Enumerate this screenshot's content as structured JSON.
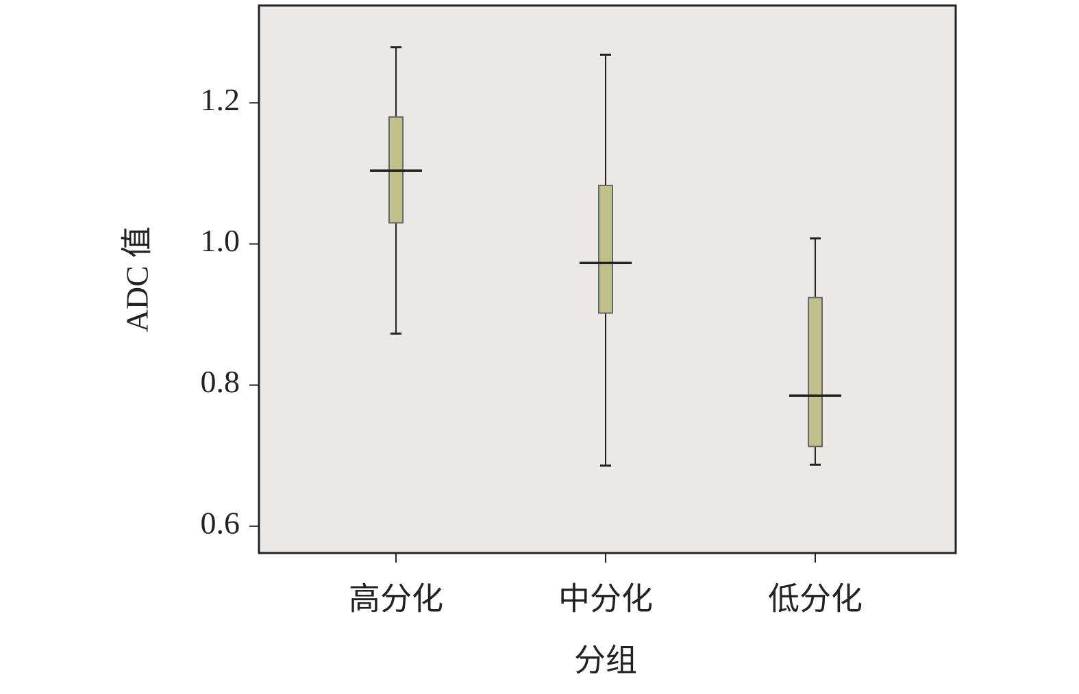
{
  "chart_data": {
    "type": "box",
    "x_label": "分组",
    "y_label": "ADC 值",
    "categories": [
      "高分化",
      "中分化",
      "低分化"
    ],
    "min": [
      0.873,
      0.686,
      0.687
    ],
    "q1": [
      1.03,
      0.902,
      0.713
    ],
    "median": [
      1.104,
      0.973,
      0.785
    ],
    "q3": [
      1.18,
      1.083,
      0.924
    ],
    "max": [
      1.279,
      1.268,
      1.008
    ],
    "color": "#c0c08a",
    "background": "#ebe9e8",
    "ylim": [
      0.562,
      1.338
    ],
    "yticks": [
      {
        "value": 0.6,
        "label": "0.6"
      },
      {
        "value": 0.8,
        "label": "0.8"
      },
      {
        "value": 1.0,
        "label": "1.0"
      },
      {
        "value": 1.2,
        "label": "1.2"
      }
    ]
  }
}
